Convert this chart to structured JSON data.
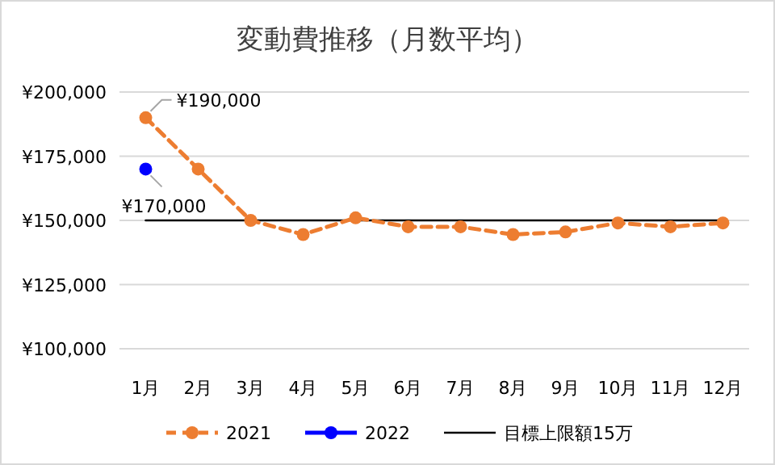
{
  "chart_data": {
    "type": "line",
    "title": "変動費推移（月数平均）",
    "categories": [
      "1月",
      "2月",
      "3月",
      "4月",
      "5月",
      "6月",
      "7月",
      "8月",
      "9月",
      "10月",
      "11月",
      "12月"
    ],
    "series": [
      {
        "name": "2021",
        "color": "#ed7d31",
        "line_style": "dashed",
        "marker": "circle",
        "values": [
          190000,
          170000,
          150000,
          144500,
          151000,
          147500,
          147500,
          144500,
          145500,
          149000,
          147500,
          149000
        ]
      },
      {
        "name": "2022",
        "color": "#0000ff",
        "line_style": "solid",
        "marker": "circle",
        "values": [
          170000,
          null,
          null,
          null,
          null,
          null,
          null,
          null,
          null,
          null,
          null,
          null
        ]
      },
      {
        "name": "目標上限額15万",
        "color": "#000000",
        "line_style": "solid",
        "marker": "none",
        "values": [
          150000,
          150000,
          150000,
          150000,
          150000,
          150000,
          150000,
          150000,
          150000,
          150000,
          150000,
          150000
        ]
      }
    ],
    "ylim": [
      100000,
      200000
    ],
    "yticks": [
      {
        "value": 100000,
        "label": "¥100,000"
      },
      {
        "value": 125000,
        "label": "¥125,000"
      },
      {
        "value": 150000,
        "label": "¥150,000"
      },
      {
        "value": 175000,
        "label": "¥175,000"
      },
      {
        "value": 200000,
        "label": "¥200,000"
      }
    ],
    "annotations": [
      {
        "text": "¥190,000",
        "x": "1月",
        "y": 190000
      },
      {
        "text": "¥170,000",
        "x": "1月",
        "y": 170000
      }
    ],
    "grid": "y",
    "legend": "bottom"
  }
}
